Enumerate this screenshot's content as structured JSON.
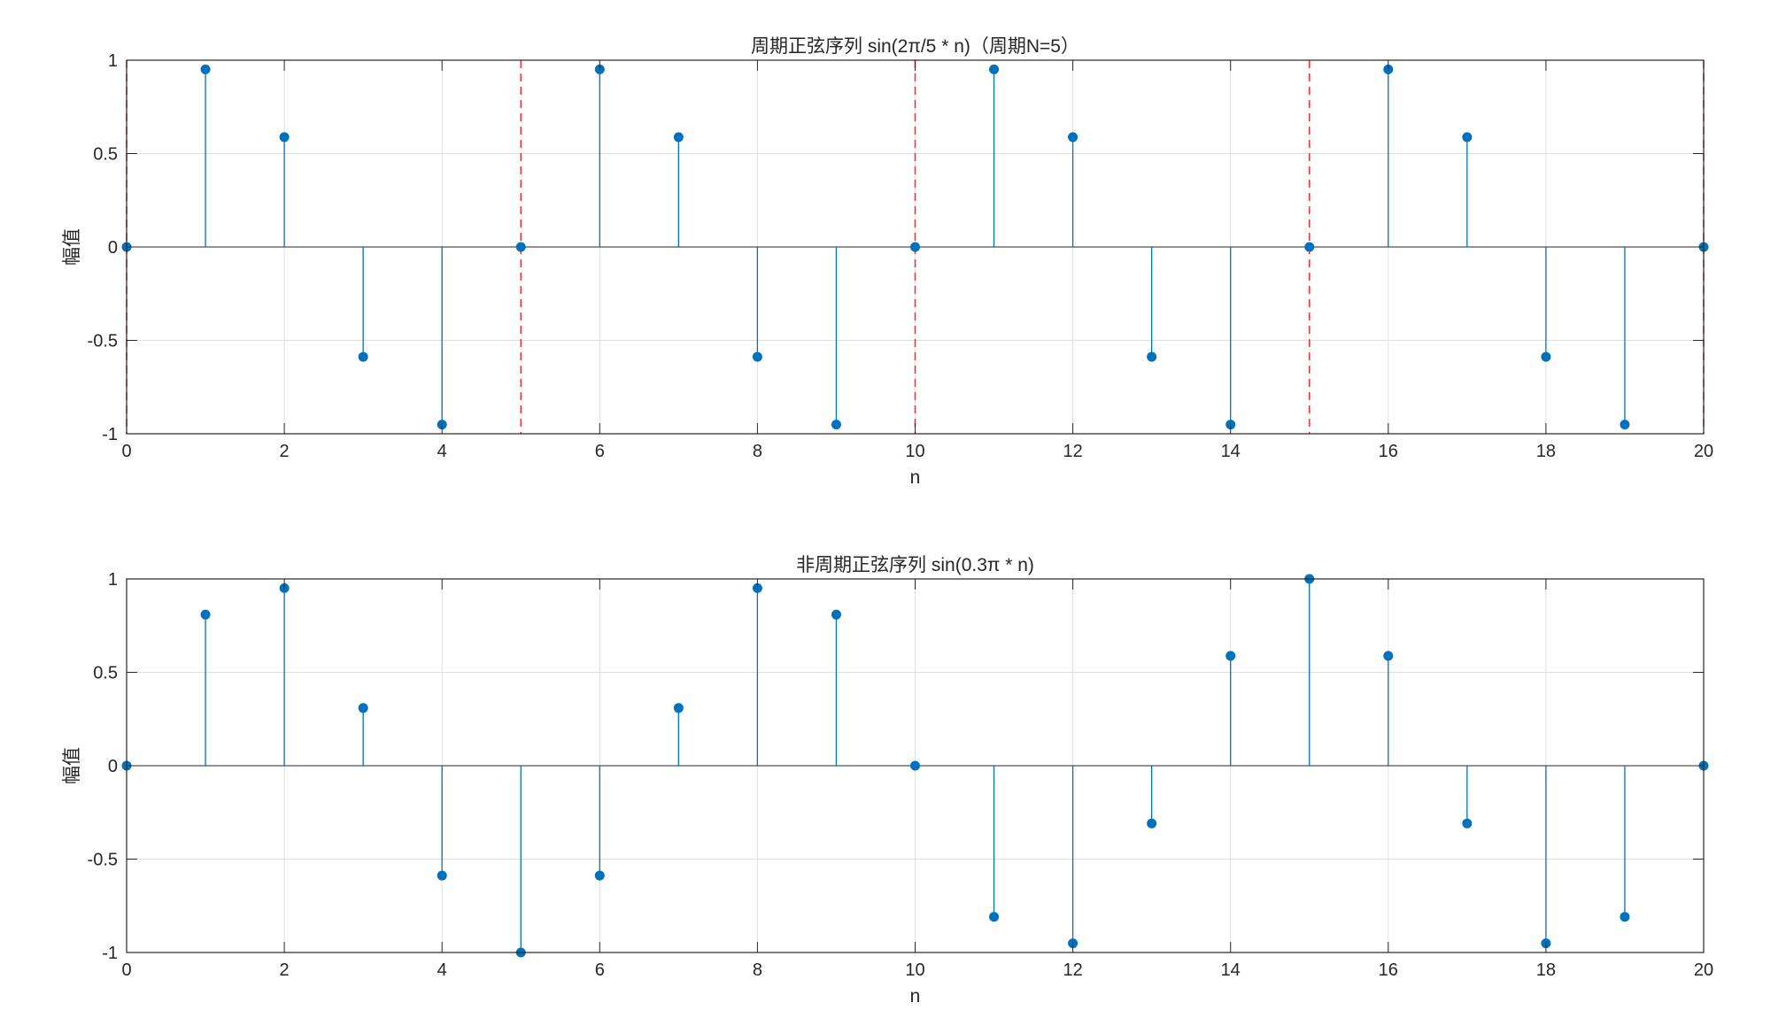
{
  "colors": {
    "stem": "#0072BD",
    "period_marker": "#FF0000",
    "grid": "#E0E0E0",
    "axis": "#262626",
    "background": "#FFFFFF"
  },
  "chart_data": [
    {
      "type": "stem",
      "title": "周期正弦序列 sin(2π/5 * n)（周期N=5）",
      "xlabel": "n",
      "ylabel": "幅值",
      "xlim": [
        0,
        20
      ],
      "ylim": [
        -1,
        1
      ],
      "xticks": [
        "0",
        "2",
        "4",
        "6",
        "8",
        "10",
        "12",
        "14",
        "16",
        "18",
        "20"
      ],
      "yticks": [
        "-1",
        "-0.5",
        "0",
        "0.5",
        "1"
      ],
      "grid": true,
      "series": [
        {
          "x": [
            0,
            1,
            2,
            3,
            4,
            5,
            6,
            7,
            8,
            9,
            10,
            11,
            12,
            13,
            14,
            15,
            16,
            17,
            18,
            19,
            20
          ],
          "values": [
            0,
            0.951,
            0.588,
            -0.588,
            -0.951,
            0,
            0.951,
            0.588,
            -0.588,
            -0.951,
            0,
            0.951,
            0.588,
            -0.588,
            -0.951,
            0,
            0.951,
            0.588,
            -0.588,
            -0.951,
            0
          ]
        }
      ],
      "period_lines": [
        0,
        5,
        10,
        15,
        20
      ]
    },
    {
      "type": "stem",
      "title": "非周期正弦序列 sin(0.3π * n)",
      "xlabel": "n",
      "ylabel": "幅值",
      "xlim": [
        0,
        20
      ],
      "ylim": [
        -1,
        1
      ],
      "xticks": [
        "0",
        "2",
        "4",
        "6",
        "8",
        "10",
        "12",
        "14",
        "16",
        "18",
        "20"
      ],
      "yticks": [
        "-1",
        "-0.5",
        "0",
        "0.5",
        "1"
      ],
      "grid": true,
      "series": [
        {
          "x": [
            0,
            1,
            2,
            3,
            4,
            5,
            6,
            7,
            8,
            9,
            10,
            11,
            12,
            13,
            14,
            15,
            16,
            17,
            18,
            19,
            20
          ],
          "values": [
            0,
            0.809,
            0.951,
            0.309,
            -0.588,
            -1,
            -0.588,
            0.309,
            0.951,
            0.809,
            0,
            -0.809,
            -0.951,
            -0.309,
            0.588,
            1,
            0.588,
            -0.309,
            -0.951,
            -0.809,
            0
          ]
        }
      ],
      "period_lines": []
    }
  ]
}
